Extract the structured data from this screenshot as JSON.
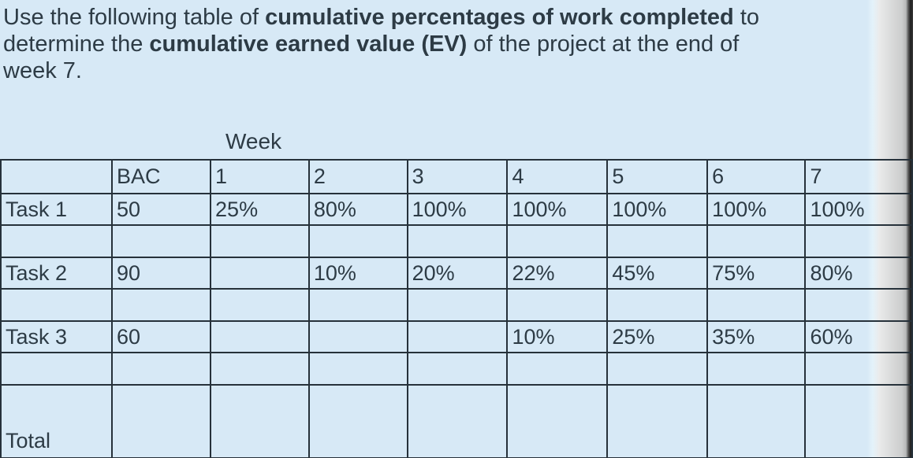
{
  "question": {
    "lines": [
      [
        {
          "text": "Use the following table of ",
          "bold": false
        },
        {
          "text": "cumulative percentages of work completed",
          "bold": true
        },
        {
          "text": " to",
          "bold": false
        }
      ],
      [
        {
          "text": "determine the ",
          "bold": false
        },
        {
          "text": "cumulative earned value (EV)",
          "bold": true
        },
        {
          "text": " of the project at the end of",
          "bold": false
        }
      ],
      [
        {
          "text": "week 7.",
          "bold": false
        }
      ]
    ]
  },
  "table": {
    "week_label": "Week",
    "header": [
      "",
      "BAC",
      "1",
      "2",
      "3",
      "4",
      "5",
      "6",
      "7"
    ],
    "rows": [
      {
        "type": "task",
        "cells": [
          "Task 1",
          "50",
          "25%",
          "80%",
          "100%",
          "100%",
          "100%",
          "100%",
          "100%"
        ]
      },
      {
        "type": "spacer",
        "cells": [
          "",
          "",
          "",
          "",
          "",
          "",
          "",
          "",
          ""
        ]
      },
      {
        "type": "task",
        "cells": [
          "Task 2",
          "90",
          "",
          "10%",
          "20%",
          "22%",
          "45%",
          "75%",
          "80%"
        ]
      },
      {
        "type": "spacer",
        "cells": [
          "",
          "",
          "",
          "",
          "",
          "",
          "",
          "",
          ""
        ]
      },
      {
        "type": "task",
        "cells": [
          "Task 3",
          "60",
          "",
          "",
          "",
          "10%",
          "25%",
          "35%",
          "60%"
        ]
      },
      {
        "type": "spacer",
        "cells": [
          "",
          "",
          "",
          "",
          "",
          "",
          "",
          "",
          ""
        ]
      },
      {
        "type": "total",
        "cells": [
          "Total",
          "",
          "",
          "",
          "",
          "",
          "",
          "",
          ""
        ]
      }
    ]
  },
  "chart_data": {
    "type": "table",
    "title": "Cumulative percentages of work completed by week",
    "categories": [
      "BAC",
      "Week 1",
      "Week 2",
      "Week 3",
      "Week 4",
      "Week 5",
      "Week 6",
      "Week 7"
    ],
    "series": [
      {
        "name": "Task 1",
        "bac": 50,
        "values_pct": [
          25,
          80,
          100,
          100,
          100,
          100,
          100
        ]
      },
      {
        "name": "Task 2",
        "bac": 90,
        "values_pct": [
          null,
          10,
          20,
          22,
          45,
          75,
          80
        ]
      },
      {
        "name": "Task 3",
        "bac": 60,
        "values_pct": [
          null,
          null,
          null,
          10,
          25,
          35,
          60
        ]
      }
    ]
  },
  "colors": {
    "page_background": "#d7e9f6",
    "text": "#2d3b45",
    "table_border": "#26313a",
    "edge_gray": "#cccdcd",
    "edge_dark": "#1f1f1f"
  }
}
